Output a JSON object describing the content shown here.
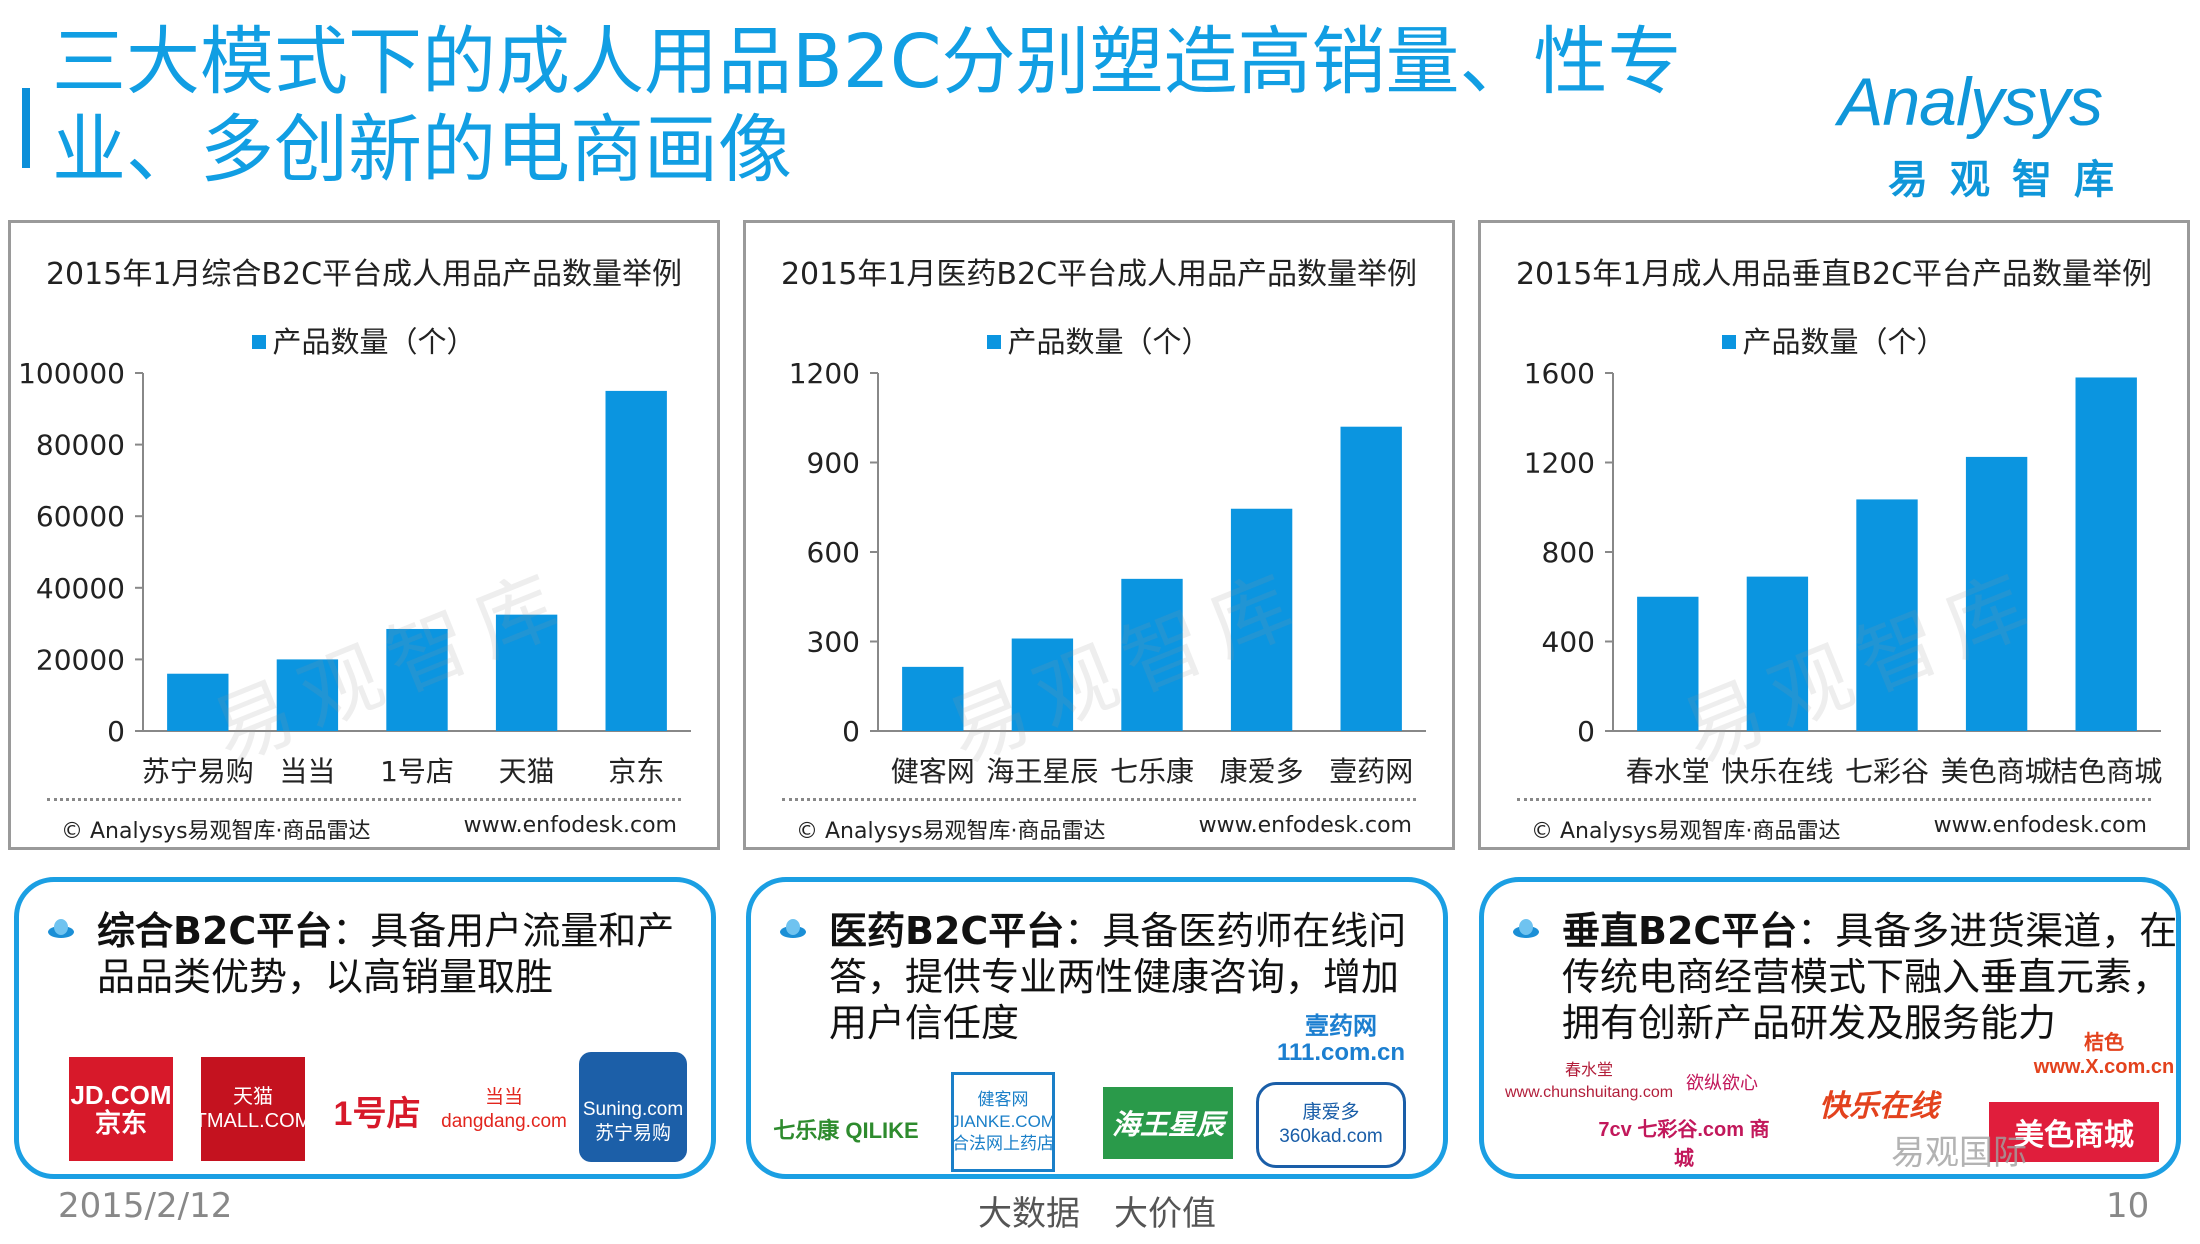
{
  "header": {
    "title": "三大模式下的成人用品B2C分别塑造高销量、性专业、多创新的电商画像",
    "logo_main": "Analysys",
    "logo_sub": "易观智库"
  },
  "watermark": "易观智库",
  "colors": {
    "accent": "#119ee3",
    "bar": "#0b95e0",
    "border": "#1b9fe3"
  },
  "charts_meta": {
    "legend": "产品数量（个）",
    "footer_left": "© Analysys易观智库·商品雷达",
    "footer_right": "www.enfodesk.com"
  },
  "chart_data": [
    {
      "type": "bar",
      "title": "2015年1月综合B2C平台成人用品产品数量举例",
      "series_name": "产品数量（个）",
      "categories": [
        "苏宁易购",
        "当当",
        "1号店",
        "天猫",
        "京东"
      ],
      "values": [
        16000,
        20000,
        28500,
        32500,
        95000
      ],
      "ylim": [
        0,
        100000
      ],
      "yticks": [
        "0",
        "20000",
        "40000",
        "60000",
        "80000",
        "100000"
      ]
    },
    {
      "type": "bar",
      "title": "2015年1月医药B2C平台成人用品产品数量举例",
      "series_name": "产品数量（个）",
      "categories": [
        "健客网",
        "海王星辰",
        "七乐康",
        "康爱多",
        "壹药网"
      ],
      "values": [
        215,
        310,
        510,
        745,
        1020
      ],
      "ylim": [
        0,
        1200
      ],
      "yticks": [
        "0",
        "300",
        "600",
        "900",
        "1200"
      ]
    },
    {
      "type": "bar",
      "title": "2015年1月成人用品垂直B2C平台产品数量举例",
      "series_name": "产品数量（个）",
      "categories": [
        "春水堂",
        "快乐在线",
        "七彩谷",
        "美色商城",
        "桔色商城"
      ],
      "values": [
        600,
        690,
        1035,
        1225,
        1580
      ],
      "ylim": [
        0,
        1600
      ],
      "yticks": [
        "0",
        "400",
        "800",
        "1200",
        "1600"
      ]
    }
  ],
  "cards": [
    {
      "heading": "综合B2C平台",
      "body": "：具备用户流量和产品品类优势，以高销量取胜",
      "brands": [
        "JD.COM 京东",
        "天猫 TMALL.COM",
        "1号店",
        "当当 dangdang.com",
        "Suning.com 苏宁易购"
      ]
    },
    {
      "heading": "医药B2C平台",
      "body": "：具备医药师在线问答，提供专业两性健康咨询，增加用户信任度",
      "brands": [
        "壹药网 111.com.cn",
        "七乐康 QILIKE",
        "健客网 JIANKE.COM 合法网上药店",
        "海王星辰",
        "康爱多 360kad.com"
      ]
    },
    {
      "heading": "垂直B2C平台",
      "body": "：具备多进货渠道，在传统电商经营模式下融入垂直元素，拥有创新产品研发及服务能力",
      "brands": [
        "春水堂 www.chunshuitang.com",
        "欲纵欲心",
        "桔色 www.X.com.cn",
        "快乐在线",
        "7cv 七彩谷.com 商城",
        "美色商城"
      ]
    }
  ],
  "footer": {
    "date": "2015/2/12",
    "center": "大数据　大价值",
    "page": "10",
    "wechat_mark": "易观国际"
  }
}
